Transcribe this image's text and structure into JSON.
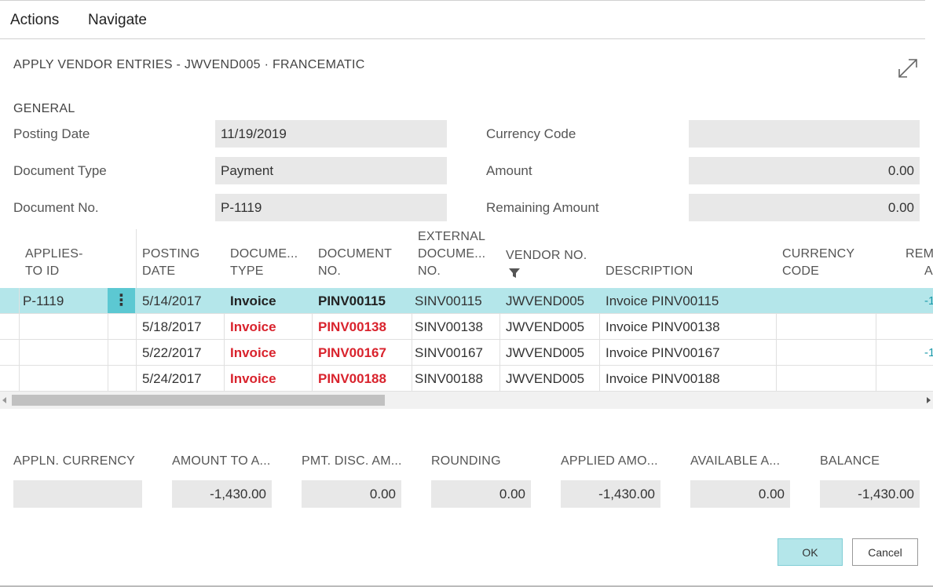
{
  "menu": {
    "actions": "Actions",
    "navigate": "Navigate"
  },
  "title": "APPLY VENDOR ENTRIES - JWVEND005 · FRANCEMATIC",
  "general": {
    "section_title": "GENERAL",
    "posting_date_label": "Posting Date",
    "posting_date": "11/19/2019",
    "document_type_label": "Document Type",
    "document_type": "Payment",
    "document_no_label": "Document No.",
    "document_no": "P-1119",
    "currency_code_label": "Currency Code",
    "currency_code": "",
    "amount_label": "Amount",
    "amount": "0.00",
    "remaining_amount_label": "Remaining Amount",
    "remaining_amount": "0.00"
  },
  "grid": {
    "headers": {
      "applies_to_id_1": "APPLIES-",
      "applies_to_id_2": "TO ID",
      "posting_date_1": "POSTING",
      "posting_date_2": "DATE",
      "document_type_1": "DOCUME...",
      "document_type_2": "TYPE",
      "document_no_1": "DOCUMENT",
      "document_no_2": "NO.",
      "external_1": "EXTERNAL",
      "external_2": "DOCUME...",
      "external_3": "NO.",
      "vendor_no": "VENDOR NO.",
      "description": "DESCRIPTION",
      "currency_1": "CURRENCY",
      "currency_2": "CODE",
      "rem_1": "REM",
      "rem_2": "A"
    },
    "rows": [
      {
        "applies_to_id": "P-1119",
        "posting_date": "5/14/2017",
        "document_type": "Invoice",
        "document_no": "PINV00115",
        "external_no": "SINV00115",
        "vendor_no": "JWVEND005",
        "description": "Invoice PINV00115",
        "rem": "-1"
      },
      {
        "applies_to_id": "",
        "posting_date": "5/18/2017",
        "document_type": "Invoice",
        "document_no": "PINV00138",
        "external_no": "SINV00138",
        "vendor_no": "JWVEND005",
        "description": "Invoice PINV00138",
        "rem": ""
      },
      {
        "applies_to_id": "",
        "posting_date": "5/22/2017",
        "document_type": "Invoice",
        "document_no": "PINV00167",
        "external_no": "SINV00167",
        "vendor_no": "JWVEND005",
        "description": "Invoice PINV00167",
        "rem": "-1"
      },
      {
        "applies_to_id": "",
        "posting_date": "5/24/2017",
        "document_type": "Invoice",
        "document_no": "PINV00188",
        "external_no": "SINV00188",
        "vendor_no": "JWVEND005",
        "description": "Invoice PINV00188",
        "rem": ""
      }
    ],
    "row_menu_glyph": "⋮"
  },
  "totals": {
    "appln_currency_label": "APPLN. CURRENCY",
    "appln_currency": "",
    "amount_to_apply_label": "AMOUNT TO A...",
    "amount_to_apply": "-1,430.00",
    "pmt_disc_label": "PMT. DISC. AM...",
    "pmt_disc": "0.00",
    "rounding_label": "ROUNDING",
    "rounding": "0.00",
    "applied_amount_label": "APPLIED AMO...",
    "applied_amount": "-1,430.00",
    "available_label": "AVAILABLE A...",
    "available": "0.00",
    "balance_label": "BALANCE",
    "balance": "-1,430.00"
  },
  "buttons": {
    "ok": "OK",
    "cancel": "Cancel"
  },
  "colors": {
    "selected_row": "#b4e6ea",
    "accent": "#5cc8d2",
    "error_text": "#d9232d"
  }
}
